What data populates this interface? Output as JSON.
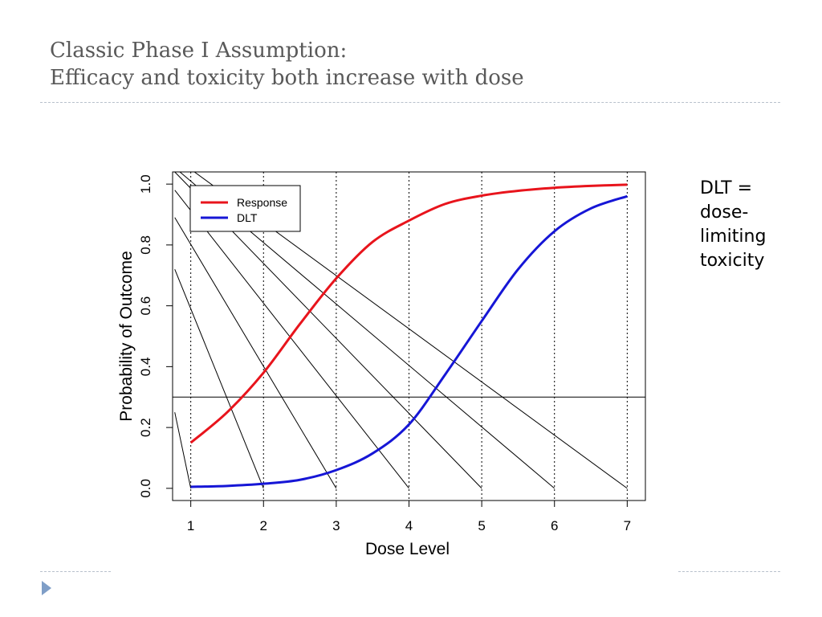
{
  "slide": {
    "title_line1": "Classic Phase I Assumption:",
    "title_line2": "Efficacy and toxicity both increase with dose",
    "side_note": [
      "DLT =",
      "dose-",
      "limiting",
      "toxicity"
    ],
    "accent_color": "#7f9ec7",
    "bullet_icon": "triangle-right-icon"
  },
  "chart_data": {
    "type": "line",
    "title": "",
    "xlabel": "Dose Level",
    "ylabel": "Probability of Outcome",
    "xlim": [
      0.75,
      7.25
    ],
    "ylim": [
      -0.04,
      1.04
    ],
    "x_ticks": [
      "1",
      "2",
      "3",
      "4",
      "5",
      "6",
      "7"
    ],
    "y_ticks": [
      "0.0",
      "0.2",
      "0.4",
      "0.6",
      "0.8",
      "1.0"
    ],
    "legend_position": "top-left",
    "series": [
      {
        "name": "Response",
        "color": "#e8141c",
        "x": [
          1,
          1.5,
          2,
          2.5,
          3,
          3.5,
          4,
          4.5,
          5,
          5.5,
          6,
          6.5,
          7
        ],
        "y": [
          0.15,
          0.25,
          0.38,
          0.54,
          0.69,
          0.81,
          0.88,
          0.935,
          0.962,
          0.978,
          0.988,
          0.994,
          0.998
        ]
      },
      {
        "name": "DLT",
        "color": "#1616d6",
        "x": [
          1,
          1.5,
          2,
          2.5,
          3,
          3.5,
          4,
          4.5,
          5,
          5.5,
          6,
          6.5,
          7
        ],
        "y": [
          0.005,
          0.008,
          0.015,
          0.028,
          0.06,
          0.115,
          0.21,
          0.375,
          0.55,
          0.72,
          0.845,
          0.92,
          0.96
        ]
      }
    ],
    "reference_lines": {
      "horizontal_y": 0.3,
      "vertical_dotted_x": [
        1,
        2,
        3,
        4,
        5,
        6,
        7
      ],
      "diagonal_segments": [
        {
          "x1": 0.78,
          "y1": 0.25,
          "x2": 1,
          "y2": 0
        },
        {
          "x1": 0.78,
          "y1": 0.72,
          "x2": 2,
          "y2": 0
        },
        {
          "x1": 0.78,
          "y1": 0.89,
          "x2": 3,
          "y2": 0
        },
        {
          "x1": 0.78,
          "y1": 0.98,
          "x2": 4,
          "y2": 0
        },
        {
          "x1": 0.78,
          "y1": 1.04,
          "x2": 5,
          "y2": 0
        },
        {
          "x1": 0.85,
          "y1": 1.04,
          "x2": 6,
          "y2": 0
        },
        {
          "x1": 1.05,
          "y1": 1.04,
          "x2": 7,
          "y2": 0
        }
      ]
    }
  }
}
